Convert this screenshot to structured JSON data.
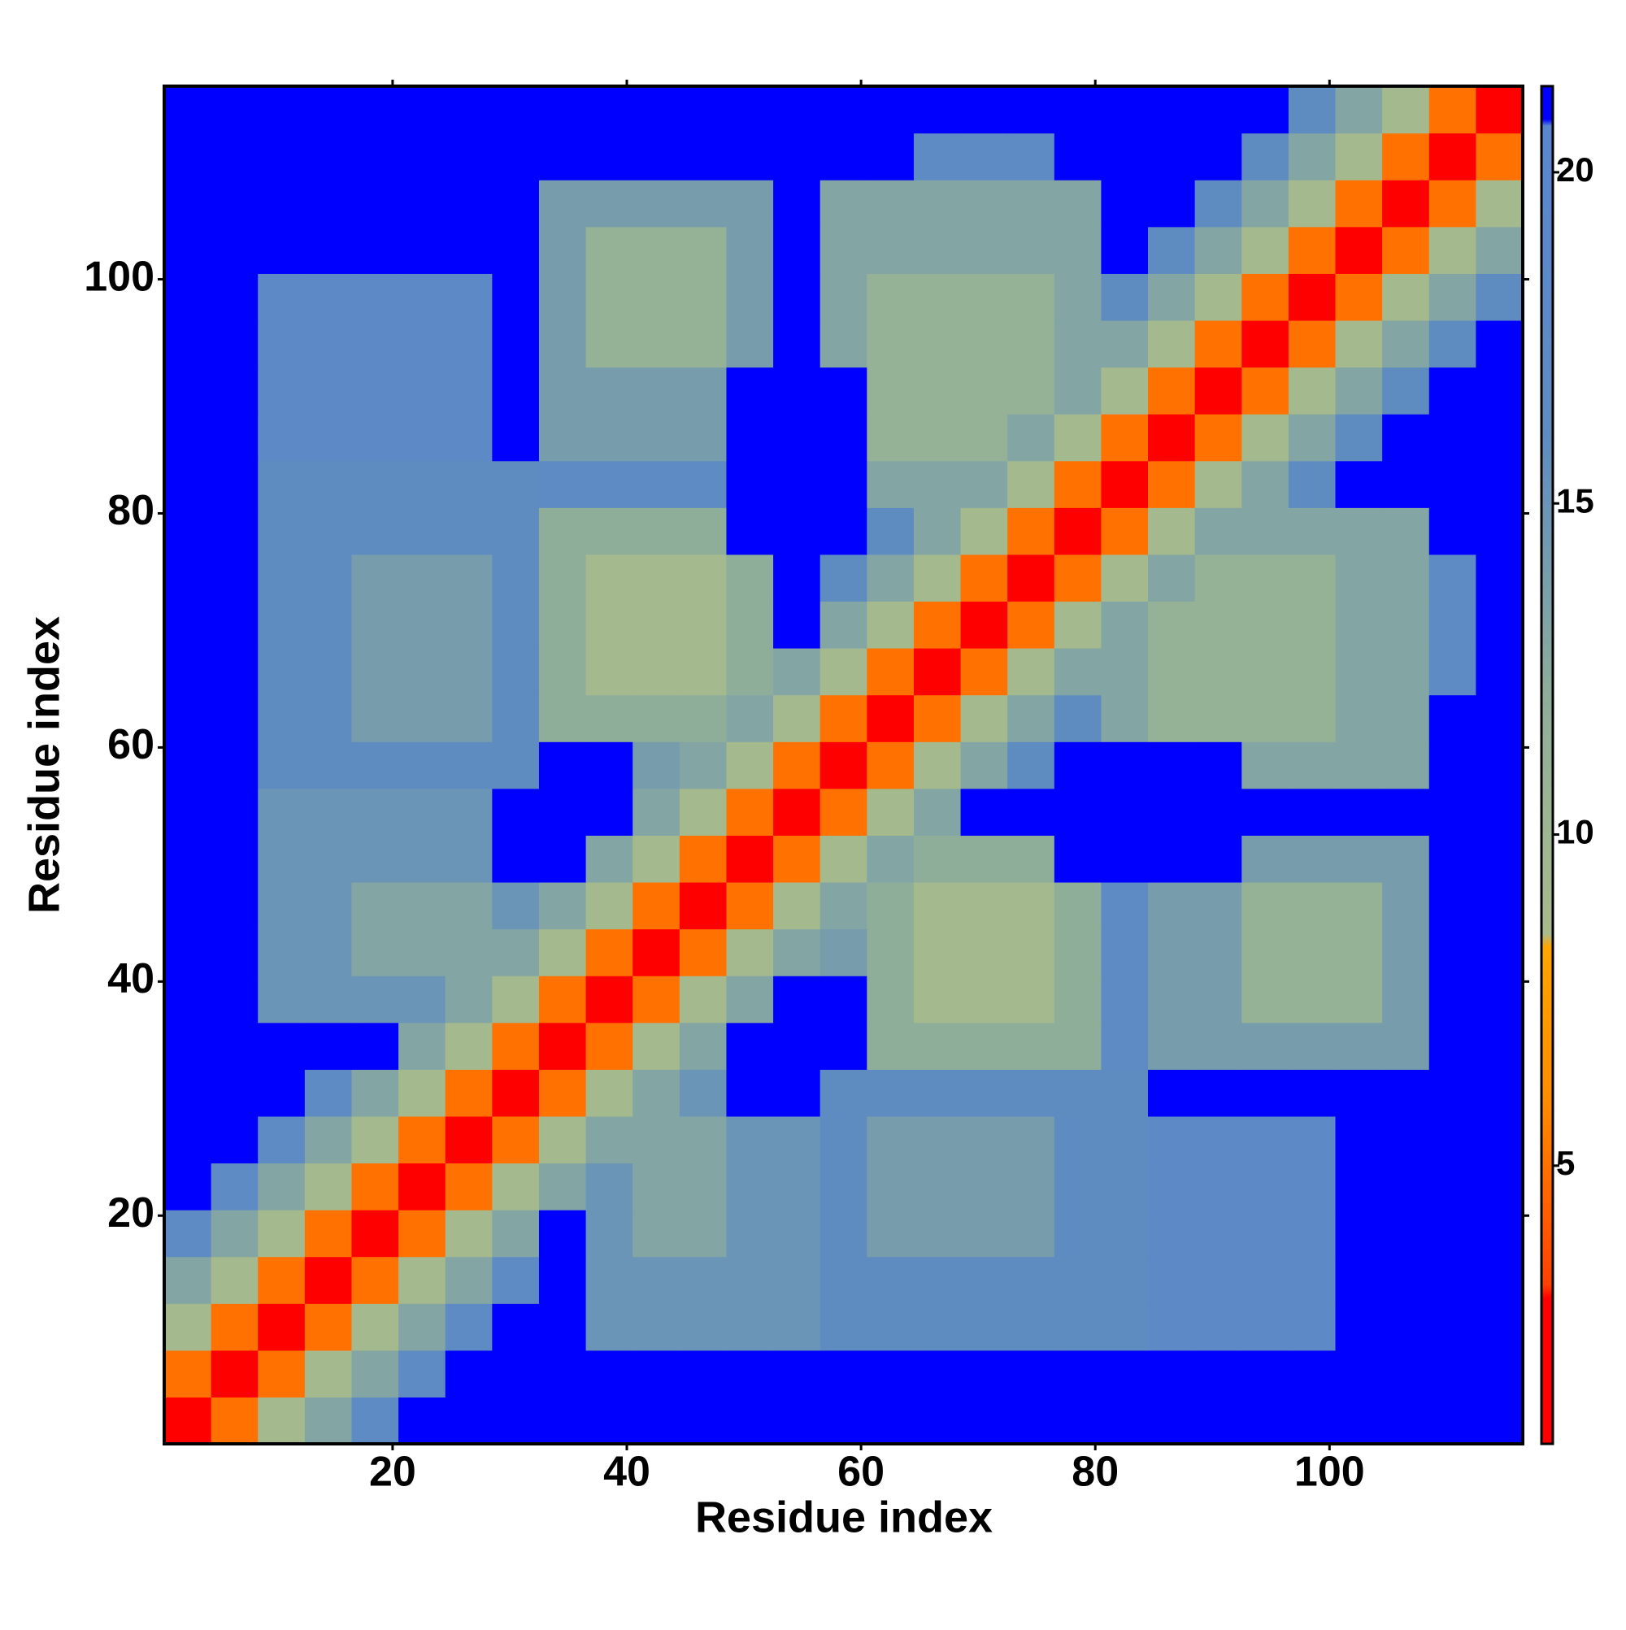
{
  "chart_data": {
    "type": "heatmap",
    "xlabel": "Residue index",
    "ylabel": "Residue index",
    "x": [
      2.5,
      6.5,
      10.5,
      14.5,
      18.5,
      22.5,
      26.5,
      30.5,
      34.5,
      38.5,
      42.5,
      46.5,
      50.5,
      54.5,
      58.5,
      62.5,
      66.5,
      70.5,
      74.5,
      78.5,
      82.5,
      86.5,
      90.5,
      94.5,
      98.5,
      102.5,
      106.5,
      110.5,
      114.5
    ],
    "y": [
      2.5,
      6.5,
      10.5,
      14.5,
      18.5,
      22.5,
      26.5,
      30.5,
      34.5,
      38.5,
      42.5,
      46.5,
      50.5,
      54.5,
      58.5,
      62.5,
      66.5,
      70.5,
      74.5,
      78.5,
      82.5,
      86.5,
      90.5,
      94.5,
      98.5,
      102.5,
      106.5,
      110.5,
      114.5
    ],
    "z": [
      [
        2,
        5,
        9,
        13,
        17,
        21,
        21,
        21,
        21,
        21,
        21,
        21,
        21,
        21,
        21,
        21,
        21,
        21,
        21,
        21,
        21,
        21,
        21,
        21,
        21,
        21,
        21,
        21,
        21
      ],
      [
        5,
        2,
        5,
        9,
        13,
        17,
        21,
        21,
        21,
        21,
        21,
        21,
        21,
        21,
        21,
        21,
        21,
        21,
        21,
        21,
        21,
        21,
        21,
        21,
        21,
        21,
        21,
        21,
        21
      ],
      [
        9,
        5,
        2,
        5,
        9,
        13,
        17,
        21,
        21,
        15,
        15,
        15,
        15,
        15,
        16,
        16,
        16,
        16,
        16,
        16,
        16,
        18,
        18,
        18,
        18,
        21,
        21,
        21,
        21
      ],
      [
        13,
        9,
        5,
        2,
        5,
        9,
        13,
        17,
        21,
        15,
        15,
        15,
        15,
        15,
        16,
        16,
        16,
        16,
        16,
        16,
        16,
        18,
        18,
        18,
        18,
        21,
        21,
        21,
        21
      ],
      [
        17,
        13,
        9,
        5,
        2,
        5,
        9,
        13,
        21,
        15,
        13,
        13,
        15,
        15,
        16,
        14,
        14,
        14,
        14,
        16,
        16,
        18,
        18,
        18,
        18,
        21,
        21,
        21,
        21
      ],
      [
        21,
        17,
        13,
        9,
        5,
        2,
        5,
        9,
        13,
        15,
        13,
        13,
        15,
        15,
        16,
        14,
        14,
        14,
        14,
        16,
        16,
        18,
        18,
        18,
        18,
        21,
        21,
        21,
        21
      ],
      [
        21,
        21,
        17,
        13,
        9,
        5,
        2,
        5,
        9,
        13,
        13,
        13,
        15,
        15,
        16,
        14,
        14,
        14,
        14,
        16,
        16,
        18,
        18,
        18,
        18,
        21,
        21,
        21,
        21
      ],
      [
        21,
        21,
        21,
        17,
        13,
        9,
        5,
        2,
        5,
        9,
        13,
        15,
        21,
        21,
        16,
        16,
        16,
        16,
        16,
        16,
        16,
        21,
        21,
        21,
        21,
        21,
        21,
        21,
        21
      ],
      [
        21,
        21,
        21,
        21,
        21,
        13,
        9,
        5,
        2,
        5,
        9,
        13,
        21,
        21,
        21,
        12,
        12,
        12,
        12,
        12,
        17,
        14,
        14,
        14,
        14,
        14,
        14,
        21,
        21
      ],
      [
        21,
        21,
        15,
        15,
        15,
        15,
        13,
        9,
        5,
        2,
        5,
        9,
        13,
        21,
        21,
        12,
        9,
        9,
        9,
        12,
        17,
        14,
        14,
        11,
        11,
        11,
        14,
        21,
        21
      ],
      [
        21,
        21,
        15,
        15,
        13,
        13,
        13,
        13,
        9,
        5,
        2,
        5,
        9,
        13,
        14,
        12,
        9,
        9,
        9,
        12,
        17,
        14,
        14,
        11,
        11,
        11,
        14,
        21,
        21
      ],
      [
        21,
        21,
        15,
        15,
        13,
        13,
        13,
        15,
        13,
        9,
        5,
        2,
        5,
        9,
        13,
        12,
        9,
        9,
        9,
        12,
        17,
        14,
        14,
        11,
        11,
        11,
        14,
        21,
        21
      ],
      [
        21,
        21,
        15,
        15,
        15,
        15,
        15,
        21,
        21,
        13,
        9,
        5,
        2,
        5,
        9,
        13,
        12,
        12,
        12,
        21,
        21,
        21,
        21,
        14,
        14,
        14,
        14,
        21,
        21
      ],
      [
        21,
        21,
        15,
        15,
        15,
        15,
        15,
        21,
        21,
        21,
        13,
        9,
        5,
        2,
        5,
        9,
        13,
        21,
        21,
        21,
        21,
        21,
        21,
        21,
        21,
        21,
        21,
        21,
        21
      ],
      [
        21,
        21,
        16,
        16,
        16,
        16,
        16,
        16,
        21,
        21,
        14,
        13,
        9,
        5,
        2,
        5,
        9,
        13,
        16,
        21,
        21,
        21,
        21,
        13,
        13,
        13,
        13,
        21,
        21
      ],
      [
        21,
        21,
        16,
        16,
        14,
        14,
        14,
        16,
        12,
        12,
        12,
        12,
        13,
        9,
        5,
        2,
        5,
        9,
        13,
        16,
        13,
        11,
        11,
        11,
        11,
        13,
        13,
        21,
        21
      ],
      [
        21,
        21,
        16,
        16,
        14,
        14,
        14,
        16,
        12,
        9,
        9,
        9,
        12,
        13,
        9,
        5,
        2,
        5,
        9,
        13,
        13,
        11,
        11,
        11,
        11,
        13,
        13,
        17,
        21
      ],
      [
        21,
        21,
        16,
        16,
        14,
        14,
        14,
        16,
        12,
        9,
        9,
        9,
        12,
        21,
        13,
        9,
        5,
        2,
        5,
        9,
        13,
        11,
        11,
        11,
        11,
        13,
        13,
        17,
        21
      ],
      [
        21,
        21,
        16,
        16,
        14,
        14,
        14,
        16,
        12,
        9,
        9,
        9,
        12,
        21,
        16,
        13,
        9,
        5,
        2,
        5,
        9,
        13,
        11,
        11,
        11,
        13,
        13,
        17,
        21
      ],
      [
        21,
        21,
        16,
        16,
        16,
        16,
        16,
        16,
        12,
        12,
        12,
        12,
        21,
        21,
        21,
        16,
        13,
        9,
        5,
        2,
        5,
        9,
        13,
        13,
        13,
        13,
        13,
        21,
        21
      ],
      [
        21,
        21,
        16,
        16,
        16,
        16,
        16,
        16,
        17,
        17,
        17,
        17,
        21,
        21,
        21,
        13,
        13,
        13,
        9,
        5,
        2,
        5,
        9,
        13,
        16,
        21,
        21,
        21,
        21
      ],
      [
        21,
        21,
        18,
        18,
        18,
        18,
        18,
        21,
        14,
        14,
        14,
        14,
        21,
        21,
        21,
        11,
        11,
        11,
        13,
        9,
        5,
        2,
        5,
        9,
        13,
        16,
        21,
        21,
        21
      ],
      [
        21,
        21,
        18,
        18,
        18,
        18,
        18,
        21,
        14,
        14,
        14,
        14,
        21,
        21,
        21,
        11,
        11,
        11,
        11,
        13,
        9,
        5,
        2,
        5,
        9,
        13,
        16,
        21,
        21
      ],
      [
        21,
        21,
        18,
        18,
        18,
        18,
        18,
        21,
        14,
        11,
        11,
        11,
        14,
        21,
        13,
        11,
        11,
        11,
        11,
        13,
        13,
        9,
        5,
        2,
        5,
        9,
        13,
        16,
        21
      ],
      [
        21,
        21,
        18,
        18,
        18,
        18,
        18,
        21,
        14,
        11,
        11,
        11,
        14,
        21,
        13,
        11,
        11,
        11,
        11,
        13,
        16,
        13,
        9,
        5,
        2,
        5,
        9,
        13,
        16
      ],
      [
        21,
        21,
        21,
        21,
        21,
        21,
        21,
        21,
        14,
        11,
        11,
        11,
        14,
        21,
        13,
        13,
        13,
        13,
        13,
        13,
        21,
        16,
        13,
        9,
        5,
        2,
        5,
        9,
        13
      ],
      [
        21,
        21,
        21,
        21,
        21,
        21,
        21,
        21,
        14,
        14,
        14,
        14,
        14,
        21,
        13,
        13,
        13,
        13,
        13,
        13,
        21,
        21,
        16,
        13,
        9,
        5,
        2,
        5,
        9
      ],
      [
        21,
        21,
        21,
        21,
        21,
        21,
        21,
        21,
        21,
        21,
        21,
        21,
        21,
        21,
        21,
        21,
        17,
        17,
        17,
        21,
        21,
        21,
        21,
        16,
        13,
        9,
        5,
        2,
        5
      ],
      [
        21,
        21,
        21,
        21,
        21,
        21,
        21,
        21,
        21,
        21,
        21,
        21,
        21,
        21,
        21,
        21,
        21,
        21,
        21,
        21,
        21,
        21,
        21,
        21,
        16,
        13,
        9,
        5,
        2
      ]
    ],
    "xlim": [
      0.5,
      116.5
    ],
    "ylim": [
      0.5,
      116.5
    ],
    "xticks": [
      20,
      40,
      60,
      80,
      100
    ],
    "yticks": [
      20,
      40,
      60,
      80,
      100
    ],
    "zlim": [
      0.8,
      21.3
    ],
    "zticks": [
      5,
      10,
      15,
      20
    ],
    "colorscale": [
      [
        0.8,
        "#ff0000"
      ],
      [
        3,
        "#ff0000"
      ],
      [
        3.2,
        "#ff4000"
      ],
      [
        6,
        "#ff8c00"
      ],
      [
        8.3,
        "#ffa500"
      ],
      [
        8.5,
        "#a9bb8c"
      ],
      [
        12,
        "#8fae9a"
      ],
      [
        16,
        "#5f8cc0"
      ],
      [
        20.7,
        "#5a86d0"
      ],
      [
        20.8,
        "#0000ff"
      ],
      [
        21.3,
        "#0000ff"
      ]
    ]
  }
}
